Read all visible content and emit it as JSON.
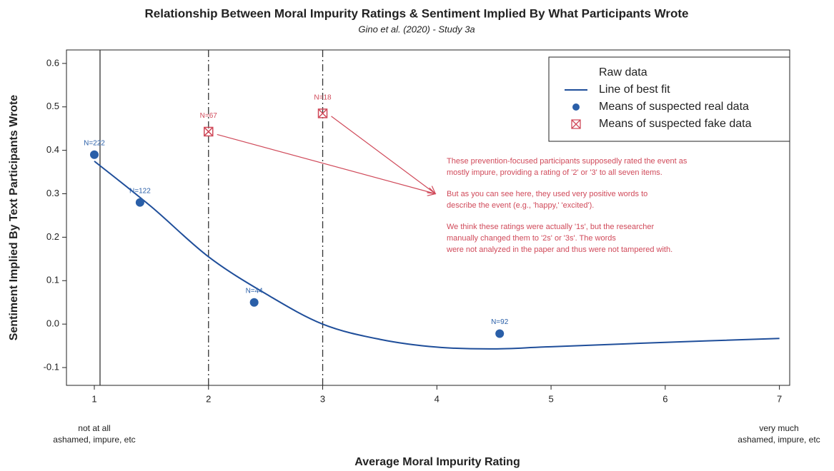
{
  "chart_data": {
    "type": "scatter",
    "title": "Relationship Between Moral Impurity Ratings & Sentiment Implied By What Participants Wrote",
    "subtitle": "Gino et al. (2020) - Study 3a",
    "xlabel": "Average Moral Impurity Rating",
    "ylabel": "Sentiment Implied By Text Participants Wrote",
    "xlim": [
      0.756,
      7.09
    ],
    "ylim": [
      -0.141,
      0.631
    ],
    "xticks": [
      1,
      2,
      3,
      4,
      5,
      6,
      7
    ],
    "yticks": [
      -0.1,
      {
        "value": 0,
        "label": "0.0"
      },
      0.1,
      0.2,
      0.3,
      0.4,
      0.5,
      0.6
    ],
    "xtick_sublabels": [
      {
        "value": 1,
        "lines": [
          "not at all",
          "ashamed, impure, etc"
        ]
      },
      {
        "value": 7,
        "lines": [
          "very much",
          "ashamed, impure, etc"
        ]
      }
    ],
    "series": [
      {
        "name": "Raw data",
        "type": "vline",
        "color": "#333333",
        "x": [
          1.05,
          2,
          3
        ]
      },
      {
        "name": "Line of best fit",
        "type": "line",
        "color": "#1f4e9a",
        "x": [
          1,
          1.5,
          2,
          2.5,
          3,
          3.5,
          4,
          4.5,
          5,
          6,
          7
        ],
        "values": [
          0.375,
          0.27,
          0.155,
          0.07,
          0.0,
          -0.035,
          -0.053,
          -0.057,
          -0.052,
          -0.042,
          -0.033
        ]
      },
      {
        "name": "Means of suspected real data",
        "type": "point",
        "color": "#2a5fa8",
        "x": [
          1,
          1.4,
          2.4,
          4.55
        ],
        "values": [
          0.39,
          0.28,
          0.05,
          -0.022
        ],
        "labels": [
          "N=222",
          "N=122",
          "N=44",
          "N=92"
        ]
      },
      {
        "name": "Means of suspected fake data",
        "type": "boxx",
        "color": "#d04a5a",
        "x": [
          2,
          3
        ],
        "values": [
          0.443,
          0.485
        ],
        "labels": [
          "N=67",
          "N=18"
        ]
      }
    ],
    "annotation": [
      [
        "These prevention-focused participants supposedly rated the event as",
        "mostly impure, providing a rating of '2' or '3' to all seven items."
      ],
      [
        "But as you can see here, they used very positive words to",
        "describe the event (e.g., 'happy,' 'excited')."
      ],
      [
        "We think these ratings were actually '1s', but the researcher",
        "manually changed them to '2s' or '3s'. The words",
        "were not analyzed in the paper and thus were not tampered with."
      ]
    ]
  }
}
